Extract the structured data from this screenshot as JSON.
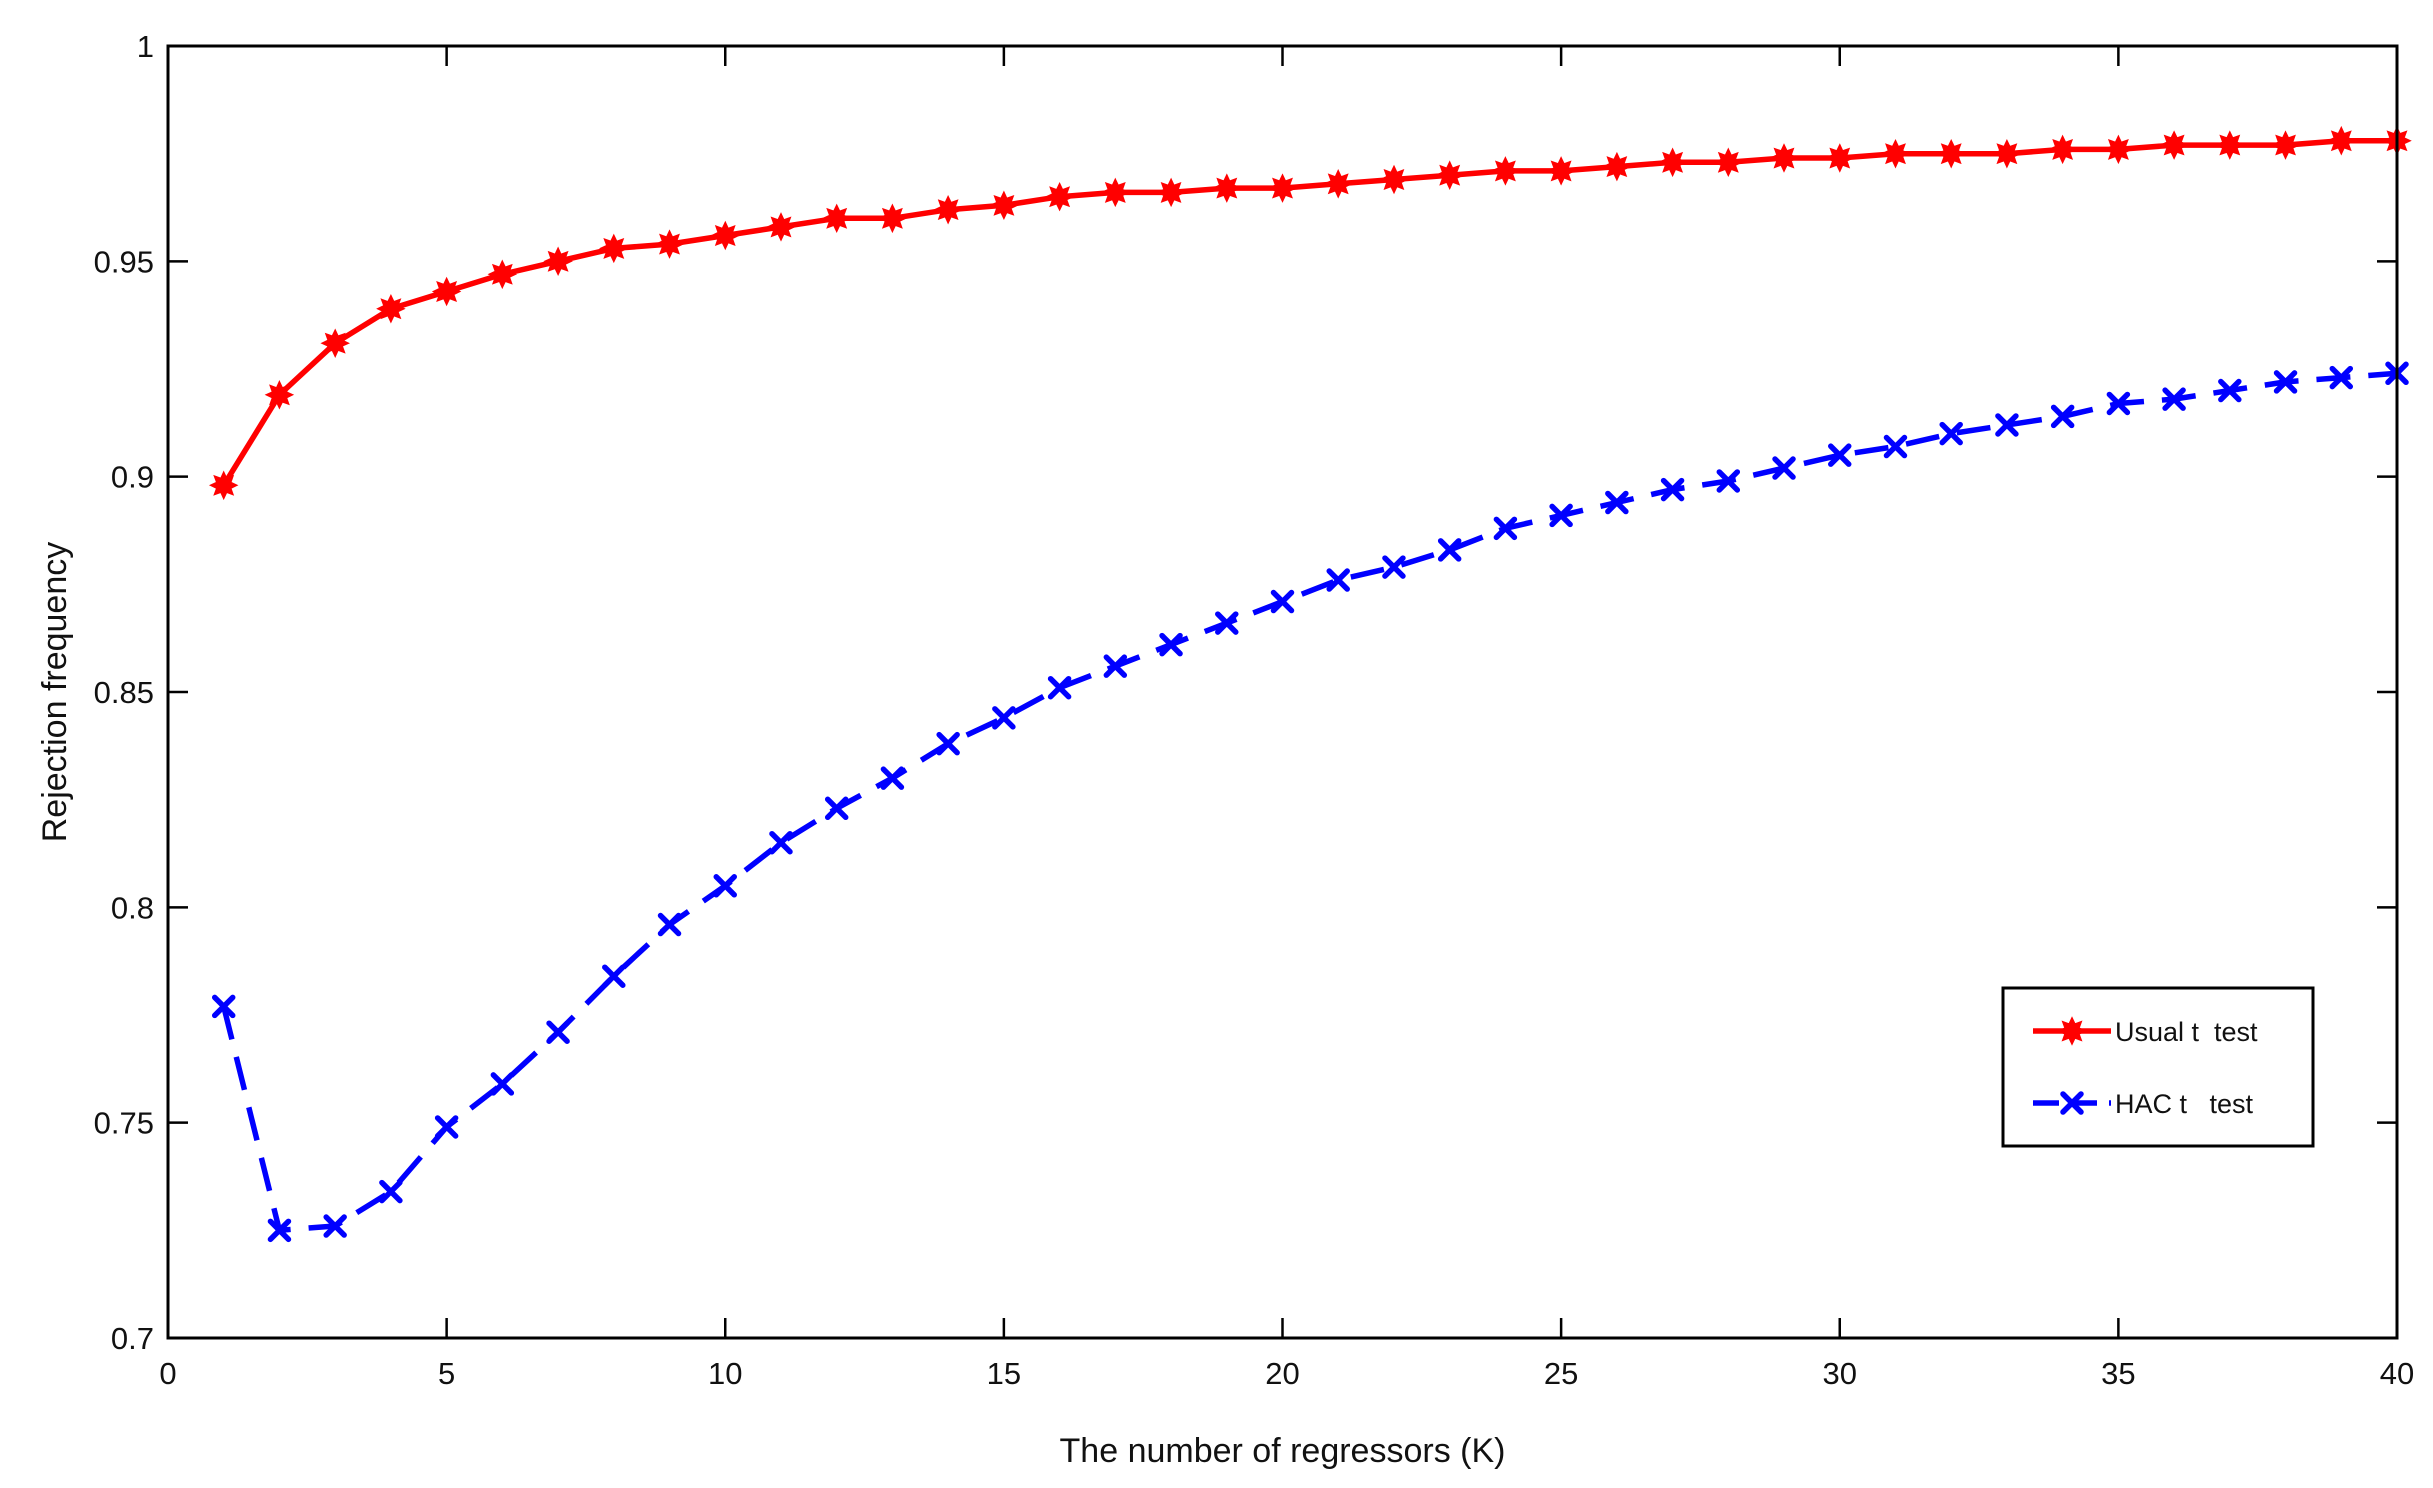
{
  "chart_data": {
    "type": "line",
    "title": "",
    "xlabel": "The number of regressors (K)",
    "ylabel": "Rejection frequency",
    "xlim": [
      0,
      40
    ],
    "ylim": [
      0.7,
      1
    ],
    "xticks": [
      0,
      5,
      10,
      15,
      20,
      25,
      30,
      35,
      40
    ],
    "xtick_labels": [
      "0",
      "5",
      "10",
      "15",
      "20",
      "25",
      "30",
      "35",
      "40"
    ],
    "yticks": [
      0.7,
      0.75,
      0.8,
      0.85,
      0.9,
      0.95,
      1
    ],
    "ytick_labels": [
      "0.7",
      "0.75",
      "0.8",
      "0.85",
      "0.9",
      "0.95",
      "1"
    ],
    "grid": false,
    "legend_position": "lower-right",
    "x": [
      1,
      2,
      3,
      4,
      5,
      6,
      7,
      8,
      9,
      10,
      11,
      12,
      13,
      14,
      15,
      16,
      17,
      18,
      19,
      20,
      21,
      22,
      23,
      24,
      25,
      26,
      27,
      28,
      29,
      30,
      31,
      32,
      33,
      34,
      35,
      36,
      37,
      38,
      39,
      40
    ],
    "series": [
      {
        "name": "Usual t  test",
        "color": "#ff0000",
        "line_style": "solid",
        "marker": "filled-star",
        "values": [
          0.898,
          0.919,
          0.931,
          0.939,
          0.943,
          0.947,
          0.95,
          0.953,
          0.954,
          0.956,
          0.958,
          0.96,
          0.96,
          0.962,
          0.963,
          0.965,
          0.966,
          0.966,
          0.967,
          0.967,
          0.968,
          0.969,
          0.97,
          0.971,
          0.971,
          0.972,
          0.973,
          0.973,
          0.974,
          0.974,
          0.975,
          0.975,
          0.975,
          0.976,
          0.976,
          0.977,
          0.977,
          0.977,
          0.978,
          0.978
        ]
      },
      {
        "name": "HAC t   test",
        "color": "#0000ff",
        "line_style": "dashed",
        "marker": "x",
        "values": [
          0.777,
          0.725,
          0.726,
          0.734,
          0.749,
          0.759,
          0.771,
          0.784,
          0.796,
          0.805,
          0.815,
          0.823,
          0.83,
          0.838,
          0.844,
          0.851,
          0.856,
          0.861,
          0.866,
          0.871,
          0.876,
          0.879,
          0.883,
          0.888,
          0.891,
          0.894,
          0.897,
          0.899,
          0.902,
          0.905,
          0.907,
          0.91,
          0.912,
          0.914,
          0.917,
          0.918,
          0.92,
          0.922,
          0.923,
          0.924
        ]
      }
    ]
  }
}
